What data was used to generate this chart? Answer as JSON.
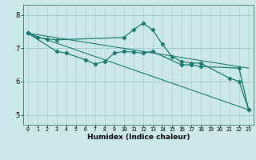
{
  "xlabel": "Humidex (Indice chaleur)",
  "bg_color": "#cce8e8",
  "line_color": "#1a7a6e",
  "grid_color": "#aad0d0",
  "xlim": [
    -0.5,
    23.5
  ],
  "ylim": [
    4.7,
    8.3
  ],
  "yticks": [
    5,
    6,
    7,
    8
  ],
  "xticks": [
    0,
    1,
    2,
    3,
    4,
    5,
    6,
    7,
    8,
    9,
    10,
    11,
    12,
    13,
    14,
    15,
    16,
    17,
    18,
    19,
    20,
    21,
    22,
    23
  ],
  "series": [
    {
      "x": [
        0,
        1,
        2,
        3,
        10,
        11,
        12,
        13,
        14,
        15,
        16,
        17,
        18,
        21,
        22,
        23
      ],
      "y": [
        7.45,
        7.32,
        7.28,
        7.25,
        7.32,
        7.55,
        7.75,
        7.55,
        7.12,
        6.75,
        6.6,
        6.55,
        6.55,
        6.1,
        6.0,
        5.15
      ],
      "marker": true
    },
    {
      "x": [
        0,
        3,
        4,
        6,
        7,
        8,
        9,
        10,
        11,
        12,
        13,
        16,
        17,
        18,
        22,
        23
      ],
      "y": [
        7.45,
        6.9,
        6.85,
        6.65,
        6.52,
        6.6,
        6.85,
        6.9,
        6.88,
        6.85,
        6.9,
        6.5,
        6.5,
        6.45,
        6.4,
        5.15
      ],
      "marker": true
    },
    {
      "x": [
        0,
        23
      ],
      "y": [
        7.45,
        5.15
      ],
      "marker": false
    },
    {
      "x": [
        0,
        23
      ],
      "y": [
        7.45,
        6.4
      ],
      "marker": false
    }
  ]
}
